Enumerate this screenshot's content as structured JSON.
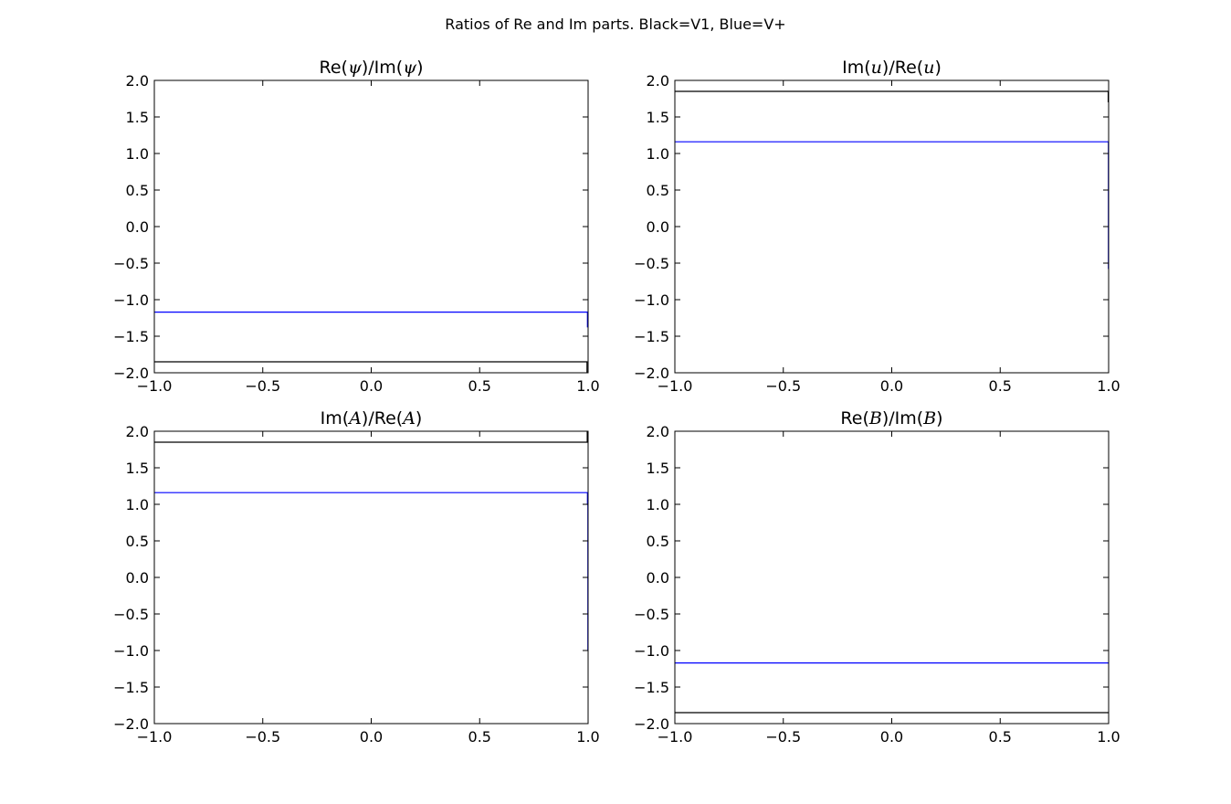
{
  "figure": {
    "suptitle": "Ratios of Re and Im parts. Black=V1, Blue=V+"
  },
  "colors": {
    "V1": "#000000",
    "V+": "#0000ff"
  },
  "chart_data": [
    {
      "type": "line",
      "title": {
        "pre": "Re(",
        "sym1": "ψ",
        "mid": ")/Im(",
        "sym2": "ψ",
        "post": ")"
      },
      "xlim": [
        -1.0,
        1.0
      ],
      "ylim": [
        -2.0,
        2.0
      ],
      "xticks": [
        -1.0,
        -0.5,
        0.0,
        0.5,
        1.0
      ],
      "yticks": [
        -2.0,
        -1.5,
        -1.0,
        -0.5,
        0.0,
        0.5,
        1.0,
        1.5,
        2.0
      ],
      "xtick_labels": [
        "−1.0",
        "−0.5",
        "0.0",
        "0.5",
        "1.0"
      ],
      "ytick_labels": [
        "−2.0",
        "−1.5",
        "−1.0",
        "−0.5",
        "0.0",
        "0.5",
        "1.0",
        "1.5",
        "2.0"
      ],
      "grid": false,
      "series": [
        {
          "color": "#000000",
          "x": [
            -1.0,
            0.995,
            0.995,
            1.0
          ],
          "y": [
            -1.85,
            -1.85,
            -2.0,
            -2.0
          ]
        },
        {
          "color": "#0000ff",
          "x": [
            -1.0,
            0.997,
            0.997
          ],
          "y": [
            -1.17,
            -1.17,
            -1.38
          ]
        }
      ]
    },
    {
      "type": "line",
      "title": {
        "pre": "Im(",
        "sym1": "u",
        "mid": ")/Re(",
        "sym2": "u",
        "post": ")"
      },
      "xlim": [
        -1.0,
        1.0
      ],
      "ylim": [
        -2.0,
        2.0
      ],
      "xticks": [
        -1.0,
        -0.5,
        0.0,
        0.5,
        1.0
      ],
      "yticks": [
        -2.0,
        -1.5,
        -1.0,
        -0.5,
        0.0,
        0.5,
        1.0,
        1.5,
        2.0
      ],
      "xtick_labels": [
        "−1.0",
        "−0.5",
        "0.0",
        "0.5",
        "1.0"
      ],
      "ytick_labels": [
        "−2.0",
        "−1.5",
        "−1.0",
        "−0.5",
        "0.0",
        "0.5",
        "1.0",
        "1.5",
        "2.0"
      ],
      "grid": false,
      "series": [
        {
          "color": "#000000",
          "x": [
            -1.0,
            0.998,
            0.998
          ],
          "y": [
            1.85,
            1.85,
            1.7
          ]
        },
        {
          "color": "#0000ff",
          "x": [
            -1.0,
            0.999,
            0.999
          ],
          "y": [
            1.16,
            1.16,
            -0.58
          ]
        }
      ]
    },
    {
      "type": "line",
      "title": {
        "pre": "Im(",
        "sym1": "A",
        "mid": ")/Re(",
        "sym2": "A",
        "post": ")"
      },
      "xlim": [
        -1.0,
        1.0
      ],
      "ylim": [
        -2.0,
        2.0
      ],
      "xticks": [
        -1.0,
        -0.5,
        0.0,
        0.5,
        1.0
      ],
      "yticks": [
        -2.0,
        -1.5,
        -1.0,
        -0.5,
        0.0,
        0.5,
        1.0,
        1.5,
        2.0
      ],
      "xtick_labels": [
        "−1.0",
        "−0.5",
        "0.0",
        "0.5",
        "1.0"
      ],
      "ytick_labels": [
        "−2.0",
        "−1.5",
        "−1.0",
        "−0.5",
        "0.0",
        "0.5",
        "1.0",
        "1.5",
        "2.0"
      ],
      "grid": false,
      "series": [
        {
          "color": "#000000",
          "x": [
            -1.0,
            0.996,
            0.996,
            1.0
          ],
          "y": [
            1.85,
            1.85,
            2.0,
            2.0
          ]
        },
        {
          "color": "#0000ff",
          "x": [
            -1.0,
            0.997,
            0.997,
            0.999,
            0.999
          ],
          "y": [
            1.16,
            1.16,
            1.0,
            1.0,
            -1.0
          ]
        }
      ]
    },
    {
      "type": "line",
      "title": {
        "pre": "Re(",
        "sym1": "B",
        "mid": ")/Im(",
        "sym2": "B",
        "post": ")"
      },
      "xlim": [
        -1.0,
        1.0
      ],
      "ylim": [
        -2.0,
        2.0
      ],
      "xticks": [
        -1.0,
        -0.5,
        0.0,
        0.5,
        1.0
      ],
      "yticks": [
        -2.0,
        -1.5,
        -1.0,
        -0.5,
        0.0,
        0.5,
        1.0,
        1.5,
        2.0
      ],
      "xtick_labels": [
        "−1.0",
        "−0.5",
        "0.0",
        "0.5",
        "1.0"
      ],
      "ytick_labels": [
        "−2.0",
        "−1.5",
        "−1.0",
        "−0.5",
        "0.0",
        "0.5",
        "1.0",
        "1.5",
        "2.0"
      ],
      "grid": false,
      "series": [
        {
          "color": "#000000",
          "x": [
            -1.0,
            1.0
          ],
          "y": [
            -1.85,
            -1.85
          ]
        },
        {
          "color": "#0000ff",
          "x": [
            -1.0,
            1.0
          ],
          "y": [
            -1.17,
            -1.17
          ]
        }
      ]
    }
  ]
}
